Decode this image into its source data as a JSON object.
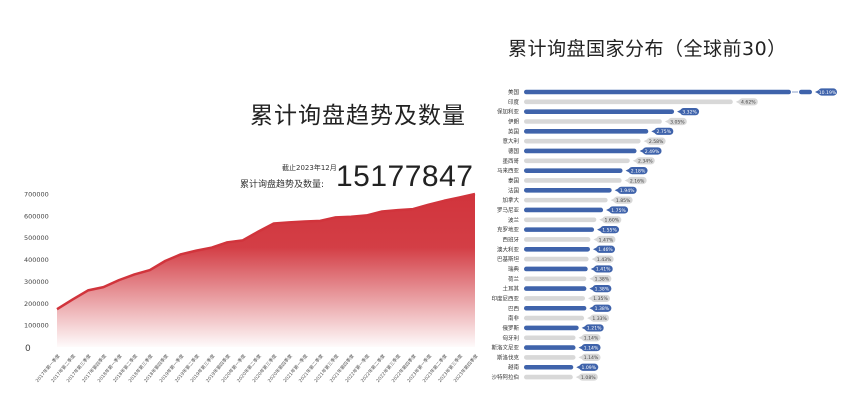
{
  "left": {
    "title": "累计询盘趋势及数量",
    "cutoff": "截止2023年12月",
    "total_label": "累计询盘趋势及数量:",
    "total_value": "15177847"
  },
  "right": {
    "title": "累计询盘国家分布（全球前30）"
  },
  "colors": {
    "area_red": "#d1343c",
    "bar_blue": "#3f63ab",
    "bar_grey": "#d8d8d8"
  },
  "chart_data": [
    {
      "type": "area",
      "title": "累计询盘趋势及数量",
      "ylim": [
        0,
        700000
      ],
      "yticks": [
        "0",
        "100000",
        "200000",
        "300000",
        "400000",
        "500000",
        "600000",
        "700000"
      ],
      "grid": false,
      "categories": [
        "2017年第一季度",
        "2017年第二季度",
        "2017年第三季度",
        "2017年第四季度",
        "2018年第一季度",
        "2018年第二季度",
        "2018年第三季度",
        "2018年第四季度",
        "2019年第一季度",
        "2019年第二季度",
        "2019年第三季度",
        "2019年第四季度",
        "2020年第一季度",
        "2020年第二季度",
        "2020年第三季度",
        "2020年第四季度",
        "2021年第一季度",
        "2021年第二季度",
        "2021年第三季度",
        "2021年第四季度",
        "2022年第一季度",
        "2022年第二季度",
        "2022年第三季度",
        "2022年第四季度",
        "2023年第一季度",
        "2023年第二季度",
        "2023年第三季度",
        "2023年第四季度"
      ],
      "values": [
        173000,
        217000,
        259000,
        274000,
        306000,
        332000,
        352000,
        394000,
        424000,
        441000,
        455000,
        479000,
        488000,
        528000,
        565000,
        570000,
        574000,
        577000,
        593000,
        596000,
        602000,
        620000,
        626000,
        631000,
        651000,
        669000,
        684000,
        700000
      ]
    },
    {
      "type": "bar",
      "orientation": "horizontal",
      "title": "累计询盘国家分布（全球前30）",
      "axis_break": true,
      "categories": [
        "美国",
        "印度",
        "保加利亚",
        "伊朗",
        "英国",
        "意大利",
        "德国",
        "墨西哥",
        "马来西亚",
        "泰国",
        "法国",
        "加拿大",
        "罗马尼亚",
        "波兰",
        "克罗地亚",
        "西班牙",
        "澳大利亚",
        "巴基斯坦",
        "瑞典",
        "荷兰",
        "土耳其",
        "印度尼西亚",
        "巴西",
        "南非",
        "俄罗斯",
        "匈牙利",
        "斯洛文尼亚",
        "斯洛伐克",
        "越南",
        "沙特阿拉伯"
      ],
      "values": [
        10.19,
        4.62,
        3.32,
        3.05,
        2.75,
        2.58,
        2.49,
        2.34,
        2.18,
        2.16,
        1.94,
        1.85,
        1.75,
        1.6,
        1.55,
        1.47,
        1.46,
        1.43,
        1.41,
        1.38,
        1.38,
        1.35,
        1.38,
        1.33,
        1.21,
        1.14,
        1.14,
        1.14,
        1.09,
        1.08
      ],
      "labels": [
        "10.19%",
        "4.62%",
        "3.32%",
        "3.05%",
        "2.75%",
        "2.58%",
        "2.49%",
        "2.34%",
        "2.18%",
        "2.16%",
        "1.94%",
        "1.85%",
        "1.75%",
        "1.60%",
        "1.55%",
        "1.47%",
        "1.46%",
        "1.43%",
        "1.41%",
        "1.38%",
        "1.38%",
        "1.35%",
        "1.38%",
        "1.33%",
        "1.21%",
        "1.14%",
        "1.14%",
        "1.14%",
        "1.09%",
        "1.08%"
      ]
    }
  ]
}
